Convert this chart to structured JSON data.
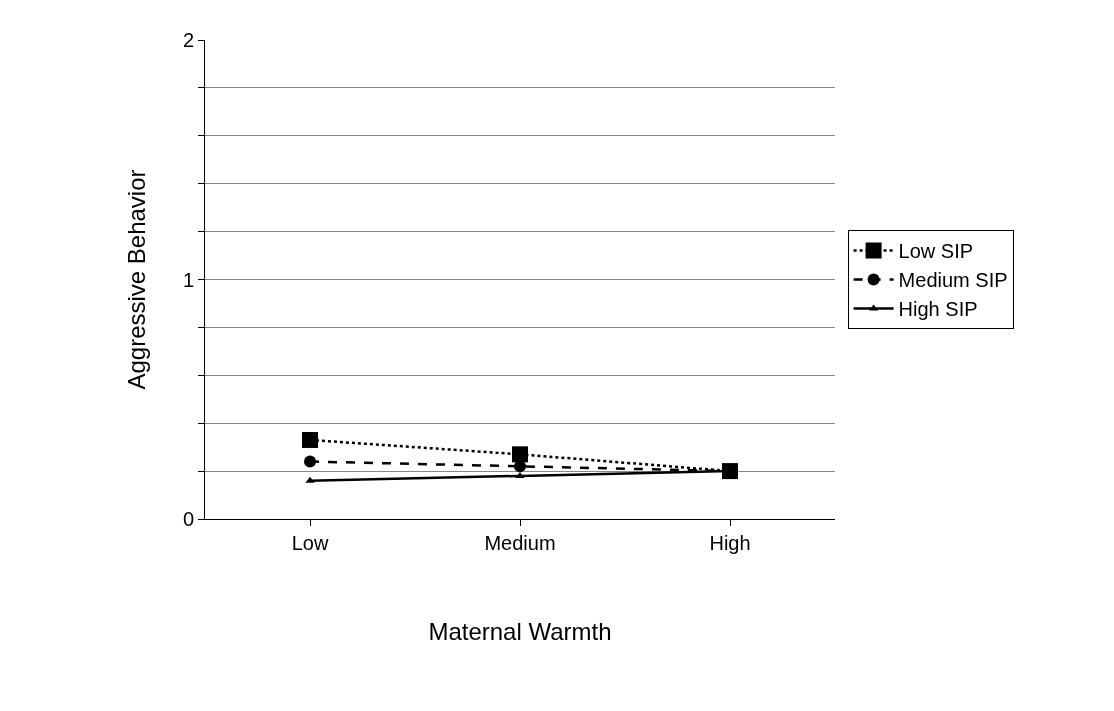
{
  "chart_data": {
    "type": "line",
    "xlabel": "Maternal Warmth",
    "ylabel": "Aggressive Behavior",
    "categories": [
      "Low",
      "Medium",
      "High"
    ],
    "series": [
      {
        "name": "Low SIP",
        "color": "#000000",
        "values": [
          0.33,
          0.27,
          0.2
        ],
        "marker": "square",
        "line_style": "dotted"
      },
      {
        "name": "Medium SIP",
        "color": "#000000",
        "values": [
          0.24,
          0.22,
          0.2
        ],
        "marker": "circle",
        "line_style": "dashed"
      },
      {
        "name": "High SIP",
        "color": "#000000",
        "values": [
          0.16,
          0.18,
          0.2
        ],
        "marker": "triangle",
        "line_style": "solid"
      }
    ],
    "ylim": [
      0,
      2
    ],
    "yticks": [
      0,
      {
        "value": 0.2,
        "label": null
      },
      {
        "value": 0.4,
        "label": null
      },
      {
        "value": 0.6,
        "label": null
      },
      {
        "value": 0.8,
        "label": null
      },
      1,
      {
        "value": 1.2,
        "label": null
      },
      {
        "value": 1.4,
        "label": null
      },
      {
        "value": 1.6,
        "label": null
      },
      {
        "value": 1.8,
        "label": null
      },
      2
    ],
    "grid": "y",
    "legend": "right"
  }
}
